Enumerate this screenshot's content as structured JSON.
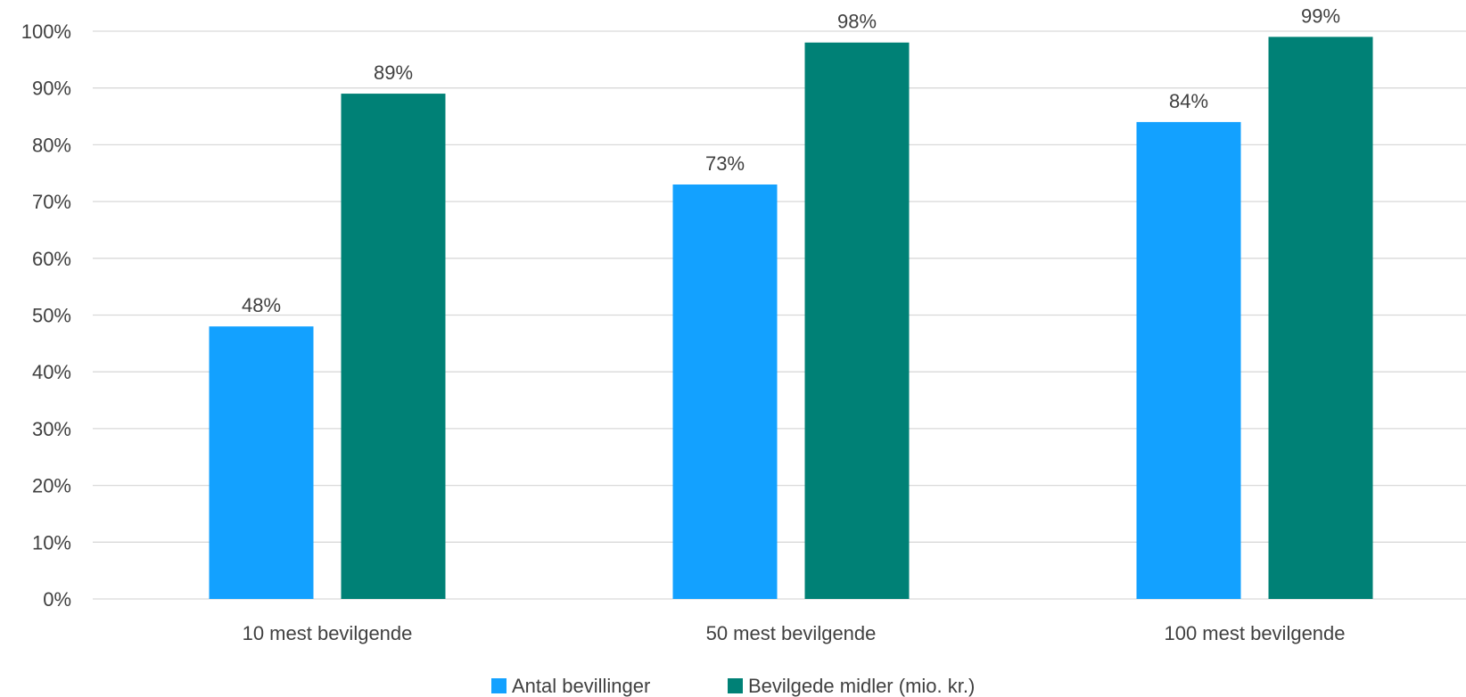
{
  "chart_data": {
    "type": "bar",
    "categories": [
      "10 mest bevilgende",
      "50 mest bevilgende",
      "100 mest bevilgende"
    ],
    "series": [
      {
        "name": "Antal bevillinger",
        "values": [
          48,
          73,
          84
        ],
        "labels": [
          "48%",
          "73%",
          "84%"
        ],
        "color": "#13a1ff"
      },
      {
        "name": "Bevilgede midler (mio. kr.)",
        "values": [
          89,
          98,
          99
        ],
        "labels": [
          "89%",
          "98%",
          "99%"
        ],
        "color": "#008176"
      }
    ],
    "y_ticks": [
      0,
      10,
      20,
      30,
      40,
      50,
      60,
      70,
      80,
      90,
      100
    ],
    "y_tick_labels": [
      "0%",
      "10%",
      "20%",
      "30%",
      "40%",
      "50%",
      "60%",
      "70%",
      "80%",
      "90%",
      "100%"
    ],
    "ylim": [
      0,
      100
    ],
    "grid": true,
    "legend_position": "bottom"
  }
}
